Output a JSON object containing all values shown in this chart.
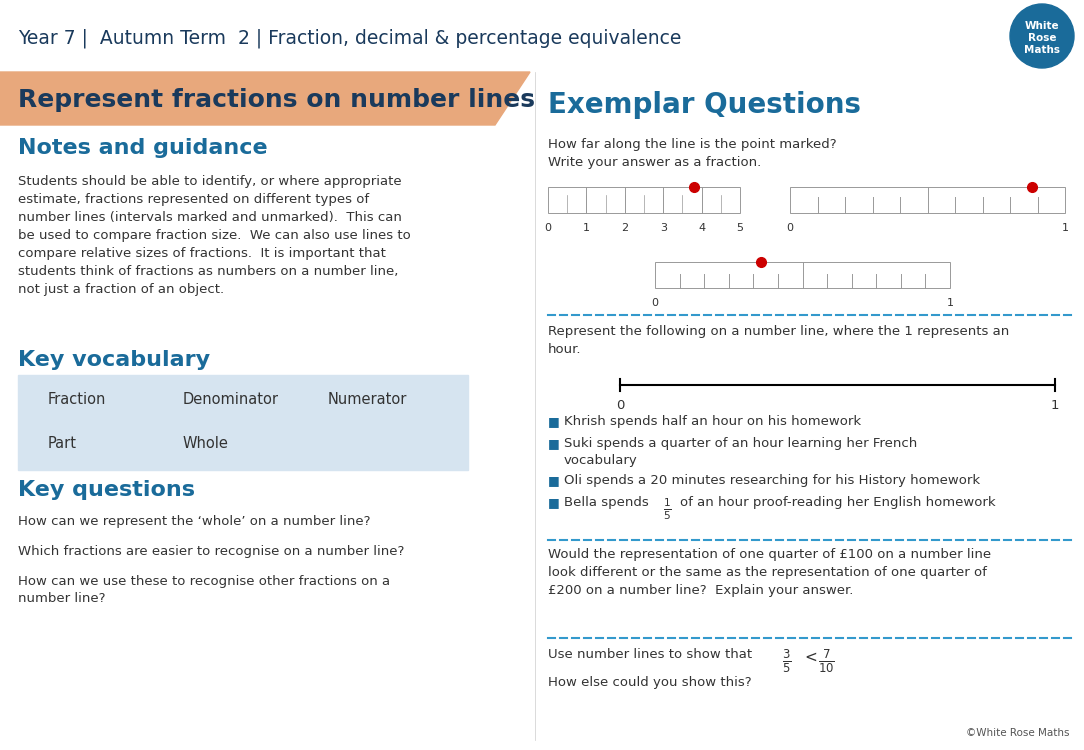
{
  "title_header": "Year 7 |  Autumn Term  2 | Fraction, decimal & percentage equivalence",
  "left_title": "Represent fractions on number lines",
  "right_title": "Exemplar Questions",
  "notes_title": "Notes and guidance",
  "notes_body": "Students should be able to identify, or where appropriate\nestimate, fractions represented on different types of\nnumber lines (intervals marked and unmarked).  This can\nbe used to compare fraction size.  We can also use lines to\ncompare relative sizes of fractions.  It is important that\nstudents think of fractions as numbers on a number line,\nnot just a fraction of an object.",
  "vocab_title": "Key vocabulary",
  "vocab_items": [
    [
      "Fraction",
      "Denominator",
      "Numerator"
    ],
    [
      "Part",
      "Whole",
      ""
    ]
  ],
  "questions_title": "Key questions",
  "key_questions": [
    "How can we represent the ‘whole’ on a number line?",
    "Which fractions are easier to recognise on a number line?",
    "How can we use these to recognise other fractions on a\nnumber line?"
  ],
  "eq_question1": "How far along the line is the point marked?\nWrite your answer as a fraction.",
  "eq_question2": "Represent the following on a number line, where the 1 represents an\nhour.",
  "eq_bullets": [
    "Khrish spends half an hour on his homework",
    "Suki spends a quarter of an hour learning her French\nvocabulary",
    "Oli spends a 20 minutes researching for his History homework",
    "Bella spends $\\frac{1}{5}$ of an hour proof-reading her English homework"
  ],
  "eq_question3": "Would the representation of one quarter of £100 on a number line\nlook different or the same as the representation of one quarter of\n£200 on a number line?  Explain your answer.",
  "eq_question4_line1": "Use number lines to show that $\\frac{3}{5} < \\frac{7}{10}$",
  "eq_question4_line2": "How else could you show this?",
  "copyright": "©White Rose Maths",
  "colors": {
    "header_bg": "#ffffff",
    "header_text": "#1a3a5c",
    "orange_bg": "#e8a87c",
    "left_title_text": "#1a3a5c",
    "right_title_text": "#1a6b9a",
    "section_heading": "#1a6b9a",
    "body_text": "#333333",
    "vocab_bg": "#d6e4f0",
    "number_line_color": "#333333",
    "dot_color": "#cc0000",
    "dashed_line": "#3399cc",
    "bullet_color": "#1a6b9a",
    "logo_blue": "#1a6b9a",
    "logo_circle": "#1a6b9a"
  }
}
